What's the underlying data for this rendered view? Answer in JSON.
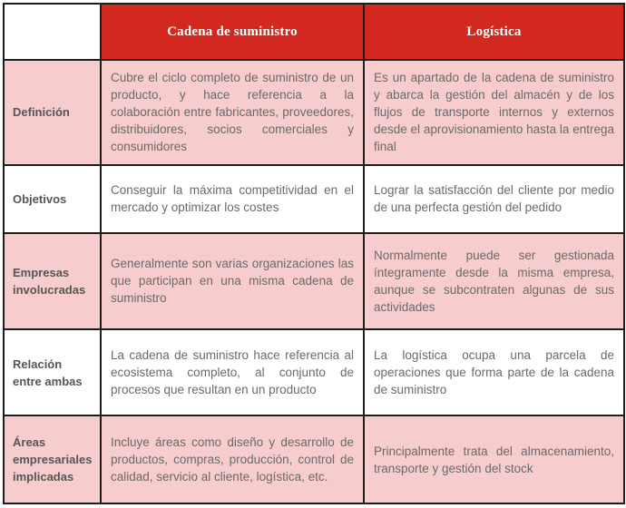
{
  "colors": {
    "header_red": "#D2281F",
    "pink_row": "#F6CCCC",
    "white_row": "#FFFFFF",
    "border": "#1C1C1C",
    "header_text": "#FFFFFF",
    "label_text": "#565656",
    "body_text": "#6A6A6A"
  },
  "table": {
    "header": {
      "corner": "",
      "columns": [
        "Cadena de suministro",
        "Logística"
      ]
    },
    "rows": [
      {
        "label": "Definición",
        "cadena": "Cubre el ciclo completo de suministro de un producto, y hace referencia a la colaboración entre fabricantes, proveedores, distribuidores, socios comerciales y consumidores",
        "logistica": "Es un apartado de la cadena de suministro y abarca la gestión del almacén y de los flujos de transporte internos y externos desde el aprovisionamiento hasta la entrega final"
      },
      {
        "label": "Objetivos",
        "cadena": "Conseguir la máxima competitividad en el mercado y optimizar los costes",
        "logistica": "Lograr la satisfacción del cliente por medio de una perfecta gestión del pedido"
      },
      {
        "label": "Empresas involucradas",
        "cadena": "Generalmente son varias organizaciones las que participan en una misma cadena de suministro",
        "logistica": "Normalmente puede ser gestionada íntegramente desde la misma empresa, aunque se subcontraten algunas de sus actividades"
      },
      {
        "label": "Relación entre ambas",
        "cadena": "La cadena de suministro hace referencia al ecosistema completo, al conjunto de procesos que resultan en un producto",
        "logistica": "La logística ocupa una parcela de operaciones que forma parte de la cadena de suministro"
      },
      {
        "label": "Áreas empresariales implicadas",
        "cadena": "Incluye áreas como diseño y desarrollo de productos, compras, producción, control de calidad, servicio al cliente, logística, etc.",
        "logistica": "Principalmente trata del almacenamiento, transporte y gestión del stock"
      }
    ]
  }
}
